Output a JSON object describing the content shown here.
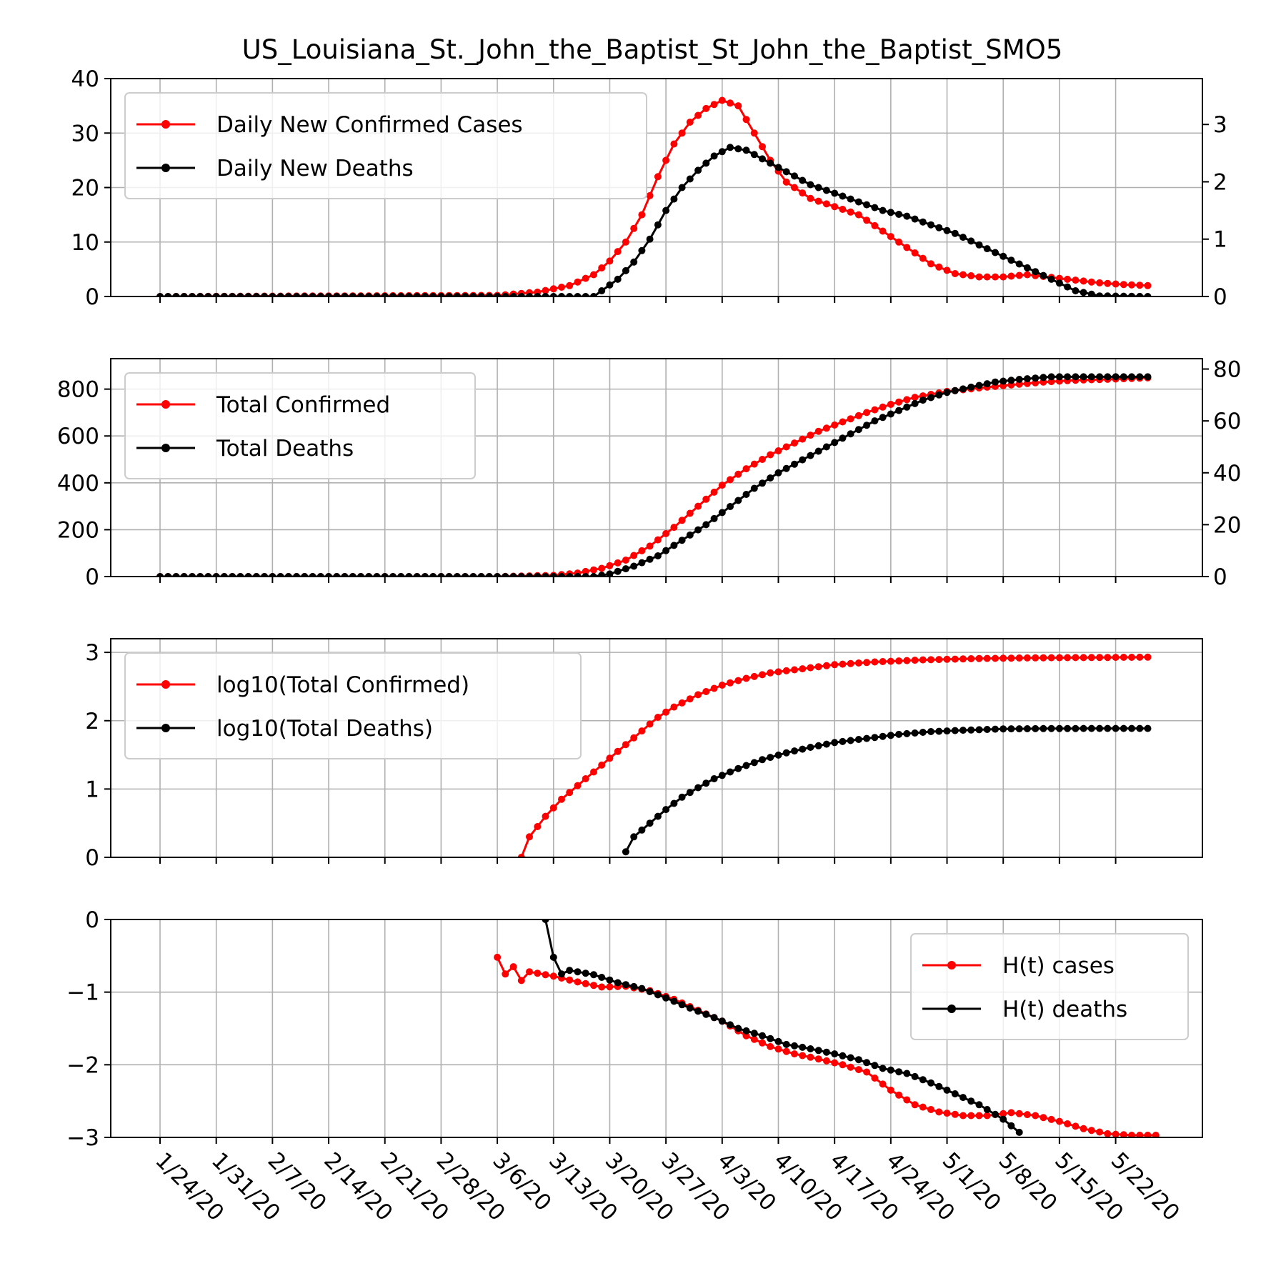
{
  "chart_data": [
    {
      "type": "line",
      "title": "US_Louisiana_St._John_the_Baptist_St_John_the_Baptist_SMO5",
      "x_tick_labels": [
        "1/24/20",
        "1/31/20",
        "2/7/20",
        "2/14/20",
        "2/21/20",
        "2/28/20",
        "3/6/20",
        "3/13/20",
        "3/20/20",
        "3/27/20",
        "4/3/20",
        "4/10/20",
        "4/17/20",
        "4/24/20",
        "5/1/20",
        "5/8/20",
        "5/15/20",
        "5/22/20"
      ],
      "ylim": [
        0,
        40
      ],
      "y_ticks": [
        "0",
        "10",
        "20",
        "30",
        "40"
      ],
      "y2lim": [
        0,
        3.8
      ],
      "y2_ticks": [
        "0",
        "1",
        "2",
        "3"
      ],
      "legend": "upper left",
      "grid": true,
      "series": [
        {
          "name": "Daily New Confirmed Cases",
          "axis": "left",
          "color": "#ff0000",
          "points": [
            [
              "1/24/20",
              0
            ],
            [
              "3/6/20",
              0.2
            ],
            [
              "3/11/20",
              0.8
            ],
            [
              "3/15/20",
              2
            ],
            [
              "3/18/20",
              4
            ],
            [
              "3/20/20",
              6.5
            ],
            [
              "3/22/20",
              10
            ],
            [
              "3/24/20",
              15
            ],
            [
              "3/26/20",
              22
            ],
            [
              "3/28/20",
              28
            ],
            [
              "3/30/20",
              32
            ],
            [
              "4/1/20",
              34.5
            ],
            [
              "4/3/20",
              36
            ],
            [
              "4/5/20",
              35
            ],
            [
              "4/7/20",
              30
            ],
            [
              "4/9/20",
              25
            ],
            [
              "4/11/20",
              21
            ],
            [
              "4/14/20",
              18
            ],
            [
              "4/17/20",
              16.5
            ],
            [
              "4/20/20",
              15
            ],
            [
              "4/23/20",
              12
            ],
            [
              "4/26/20",
              9
            ],
            [
              "4/29/20",
              6
            ],
            [
              "5/2/20",
              4.2
            ],
            [
              "5/5/20",
              3.6
            ],
            [
              "5/8/20",
              3.6
            ],
            [
              "5/11/20",
              4
            ],
            [
              "5/14/20",
              3.5
            ],
            [
              "5/17/20",
              3
            ],
            [
              "5/20/20",
              2.5
            ],
            [
              "5/23/20",
              2.2
            ],
            [
              "5/26/20",
              2
            ]
          ]
        },
        {
          "name": "Daily New Deaths",
          "axis": "right",
          "color": "#000000",
          "points": [
            [
              "1/24/20",
              0
            ],
            [
              "3/18/20",
              0
            ],
            [
              "3/19/20",
              0.1
            ],
            [
              "3/21/20",
              0.3
            ],
            [
              "3/23/20",
              0.6
            ],
            [
              "3/25/20",
              1
            ],
            [
              "3/27/20",
              1.5
            ],
            [
              "3/29/20",
              1.9
            ],
            [
              "3/31/20",
              2.2
            ],
            [
              "4/2/20",
              2.45
            ],
            [
              "4/4/20",
              2.6
            ],
            [
              "4/6/20",
              2.55
            ],
            [
              "4/8/20",
              2.4
            ],
            [
              "4/10/20",
              2.25
            ],
            [
              "4/12/20",
              2.1
            ],
            [
              "4/14/20",
              1.95
            ],
            [
              "4/17/20",
              1.8
            ],
            [
              "4/20/20",
              1.65
            ],
            [
              "4/23/20",
              1.5
            ],
            [
              "4/26/20",
              1.4
            ],
            [
              "4/29/20",
              1.25
            ],
            [
              "5/2/20",
              1.1
            ],
            [
              "5/5/20",
              0.9
            ],
            [
              "5/8/20",
              0.7
            ],
            [
              "5/11/20",
              0.5
            ],
            [
              "5/14/20",
              0.3
            ],
            [
              "5/17/20",
              0.1
            ],
            [
              "5/20/20",
              0.01
            ],
            [
              "5/26/20",
              0
            ]
          ]
        }
      ]
    },
    {
      "type": "line",
      "x_tick_labels": [
        "1/24/20",
        "1/31/20",
        "2/7/20",
        "2/14/20",
        "2/21/20",
        "2/28/20",
        "3/6/20",
        "3/13/20",
        "3/20/20",
        "3/27/20",
        "4/3/20",
        "4/10/20",
        "4/17/20",
        "4/24/20",
        "5/1/20",
        "5/8/20",
        "5/15/20",
        "5/22/20"
      ],
      "ylim": [
        0,
        930
      ],
      "y_ticks": [
        "0",
        "200",
        "400",
        "600",
        "800"
      ],
      "y2lim": [
        0,
        84
      ],
      "y2_ticks": [
        "0",
        "20",
        "40",
        "60",
        "80"
      ],
      "legend": "upper left",
      "grid": true,
      "series": [
        {
          "name": "Total Confirmed",
          "axis": "left",
          "color": "#ff0000",
          "points": [
            [
              "1/24/20",
              0
            ],
            [
              "3/6/20",
              0
            ],
            [
              "3/13/20",
              5
            ],
            [
              "3/16/20",
              15
            ],
            [
              "3/19/20",
              35
            ],
            [
              "3/22/20",
              70
            ],
            [
              "3/25/20",
              130
            ],
            [
              "3/28/20",
              210
            ],
            [
              "3/31/20",
              300
            ],
            [
              "4/3/20",
              390
            ],
            [
              "4/6/20",
              460
            ],
            [
              "4/9/20",
              520
            ],
            [
              "4/12/20",
              570
            ],
            [
              "4/15/20",
              620
            ],
            [
              "4/18/20",
              660
            ],
            [
              "4/21/20",
              700
            ],
            [
              "4/24/20",
              735
            ],
            [
              "4/27/20",
              765
            ],
            [
              "5/1/20",
              790
            ],
            [
              "5/5/20",
              805
            ],
            [
              "5/9/20",
              818
            ],
            [
              "5/13/20",
              830
            ],
            [
              "5/17/20",
              838
            ],
            [
              "5/21/20",
              842
            ],
            [
              "5/26/20",
              848
            ]
          ]
        },
        {
          "name": "Total Deaths",
          "axis": "right",
          "color": "#000000",
          "points": [
            [
              "1/24/20",
              0
            ],
            [
              "3/18/20",
              0
            ],
            [
              "3/20/20",
              1
            ],
            [
              "3/23/20",
              4
            ],
            [
              "3/26/20",
              8
            ],
            [
              "3/29/20",
              14
            ],
            [
              "4/1/20",
              20
            ],
            [
              "4/4/20",
              27
            ],
            [
              "4/7/20",
              34
            ],
            [
              "4/10/20",
              40
            ],
            [
              "4/13/20",
              45
            ],
            [
              "4/16/20",
              50
            ],
            [
              "4/19/20",
              55
            ],
            [
              "4/22/20",
              60
            ],
            [
              "4/25/20",
              64
            ],
            [
              "4/28/20",
              68
            ],
            [
              "5/1/20",
              71
            ],
            [
              "5/4/20",
              73
            ],
            [
              "5/7/20",
              75
            ],
            [
              "5/10/20",
              76
            ],
            [
              "5/14/20",
              77
            ],
            [
              "5/18/20",
              77
            ],
            [
              "5/26/20",
              77
            ]
          ]
        }
      ]
    },
    {
      "type": "line",
      "x_tick_labels": [
        "1/24/20",
        "1/31/20",
        "2/7/20",
        "2/14/20",
        "2/21/20",
        "2/28/20",
        "3/6/20",
        "3/13/20",
        "3/20/20",
        "3/27/20",
        "4/3/20",
        "4/10/20",
        "4/17/20",
        "4/24/20",
        "5/1/20",
        "5/8/20",
        "5/15/20",
        "5/22/20"
      ],
      "ylim": [
        0,
        3.2
      ],
      "y_ticks": [
        "0",
        "1",
        "2",
        "3"
      ],
      "legend": "upper left",
      "grid": true,
      "series": [
        {
          "name": "log10(Total Confirmed)",
          "axis": "left",
          "color": "#ff0000",
          "points": [
            [
              "3/9/20",
              0
            ],
            [
              "3/10/20",
              0.3
            ],
            [
              "3/12/20",
              0.6
            ],
            [
              "3/14/20",
              0.85
            ],
            [
              "3/16/20",
              1.05
            ],
            [
              "3/18/20",
              1.25
            ],
            [
              "3/20/20",
              1.45
            ],
            [
              "3/22/20",
              1.65
            ],
            [
              "3/24/20",
              1.85
            ],
            [
              "3/26/20",
              2.05
            ],
            [
              "3/28/20",
              2.2
            ],
            [
              "3/31/20",
              2.38
            ],
            [
              "4/3/20",
              2.52
            ],
            [
              "4/6/20",
              2.62
            ],
            [
              "4/9/20",
              2.7
            ],
            [
              "4/13/20",
              2.76
            ],
            [
              "4/17/20",
              2.82
            ],
            [
              "4/22/20",
              2.86
            ],
            [
              "4/28/20",
              2.89
            ],
            [
              "5/5/20",
              2.91
            ],
            [
              "5/12/20",
              2.92
            ],
            [
              "5/19/20",
              2.925
            ],
            [
              "5/26/20",
              2.93
            ]
          ]
        },
        {
          "name": "log10(Total Deaths)",
          "axis": "left",
          "color": "#000000",
          "points": [
            [
              "3/22/20",
              0.08
            ],
            [
              "3/23/20",
              0.3
            ],
            [
              "3/25/20",
              0.5
            ],
            [
              "3/27/20",
              0.7
            ],
            [
              "3/29/20",
              0.88
            ],
            [
              "3/31/20",
              1.02
            ],
            [
              "4/2/20",
              1.15
            ],
            [
              "4/5/20",
              1.3
            ],
            [
              "4/8/20",
              1.43
            ],
            [
              "4/11/20",
              1.53
            ],
            [
              "4/14/20",
              1.61
            ],
            [
              "4/17/20",
              1.68
            ],
            [
              "4/21/20",
              1.74
            ],
            [
              "4/25/20",
              1.8
            ],
            [
              "4/29/20",
              1.84
            ],
            [
              "5/3/20",
              1.86
            ],
            [
              "5/8/20",
              1.88
            ],
            [
              "5/14/20",
              1.885
            ],
            [
              "5/20/20",
              1.887
            ],
            [
              "5/26/20",
              1.887
            ]
          ]
        }
      ]
    },
    {
      "type": "line",
      "x_tick_labels": [
        "1/24/20",
        "1/31/20",
        "2/7/20",
        "2/14/20",
        "2/21/20",
        "2/28/20",
        "3/6/20",
        "3/13/20",
        "3/20/20",
        "3/27/20",
        "4/3/20",
        "4/10/20",
        "4/17/20",
        "4/24/20",
        "5/1/20",
        "5/8/20",
        "5/15/20",
        "5/22/20"
      ],
      "ylim": [
        -3,
        0
      ],
      "y_ticks": [
        "−3",
        "−2",
        "−1",
        "0"
      ],
      "legend": "upper right",
      "grid": true,
      "series": [
        {
          "name": "H(t) cases",
          "axis": "left",
          "color": "#ff0000",
          "points": [
            [
              "3/6/20",
              -0.52
            ],
            [
              "3/7/20",
              -0.75
            ],
            [
              "3/8/20",
              -0.65
            ],
            [
              "3/9/20",
              -0.84
            ],
            [
              "3/10/20",
              -0.72
            ],
            [
              "3/13/20",
              -0.78
            ],
            [
              "3/16/20",
              -0.86
            ],
            [
              "3/19/20",
              -0.93
            ],
            [
              "3/22/20",
              -0.92
            ],
            [
              "3/25/20",
              -0.98
            ],
            [
              "3/28/20",
              -1.1
            ],
            [
              "3/31/20",
              -1.25
            ],
            [
              "4/3/20",
              -1.4
            ],
            [
              "4/6/20",
              -1.6
            ],
            [
              "4/9/20",
              -1.75
            ],
            [
              "4/12/20",
              -1.85
            ],
            [
              "4/15/20",
              -1.92
            ],
            [
              "4/18/20",
              -2.0
            ],
            [
              "4/21/20",
              -2.1
            ],
            [
              "4/24/20",
              -2.35
            ],
            [
              "4/27/20",
              -2.55
            ],
            [
              "4/30/20",
              -2.65
            ],
            [
              "5/3/20",
              -2.7
            ],
            [
              "5/6/20",
              -2.7
            ],
            [
              "5/9/20",
              -2.66
            ],
            [
              "5/12/20",
              -2.7
            ],
            [
              "5/15/20",
              -2.78
            ],
            [
              "5/18/20",
              -2.88
            ],
            [
              "5/21/20",
              -2.95
            ],
            [
              "5/24/20",
              -2.97
            ],
            [
              "5/27/20",
              -2.97
            ]
          ]
        },
        {
          "name": "H(t) deaths",
          "axis": "left",
          "color": "#000000",
          "points": [
            [
              "3/12/20",
              0
            ],
            [
              "3/13/20",
              -0.52
            ],
            [
              "3/14/20",
              -0.75
            ],
            [
              "3/15/20",
              -0.7
            ],
            [
              "3/18/20",
              -0.76
            ],
            [
              "3/21/20",
              -0.87
            ],
            [
              "3/24/20",
              -0.95
            ],
            [
              "3/27/20",
              -1.08
            ],
            [
              "3/30/20",
              -1.22
            ],
            [
              "4/2/20",
              -1.35
            ],
            [
              "4/5/20",
              -1.5
            ],
            [
              "4/8/20",
              -1.6
            ],
            [
              "4/11/20",
              -1.72
            ],
            [
              "4/14/20",
              -1.78
            ],
            [
              "4/17/20",
              -1.85
            ],
            [
              "4/20/20",
              -1.93
            ],
            [
              "4/23/20",
              -2.05
            ],
            [
              "4/26/20",
              -2.12
            ],
            [
              "4/29/20",
              -2.25
            ],
            [
              "5/2/20",
              -2.4
            ],
            [
              "5/5/20",
              -2.55
            ],
            [
              "5/8/20",
              -2.75
            ],
            [
              "5/10/20",
              -2.93
            ]
          ]
        }
      ]
    }
  ]
}
